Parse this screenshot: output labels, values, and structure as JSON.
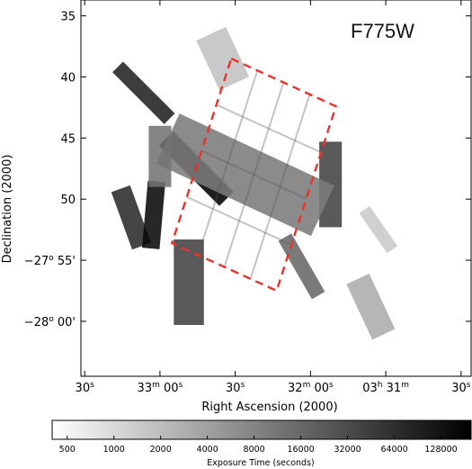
{
  "chart_data": {
    "type": "heatmap",
    "title": "F775W",
    "xlabel": "Right Ascension (2000)",
    "ylabel": "Declination (2000)",
    "x_ticks": [
      {
        "ra_sec": 30.0,
        "label": "30"
      },
      {
        "ra_sec": 60.0,
        "label": "33"
      },
      {
        "ra_sec": 90.0,
        "label": "30"
      },
      {
        "ra_sec": 120.0,
        "label": "32"
      },
      {
        "ra_sec": 150.0,
        "label": "03"
      },
      {
        "ra_sec": 180.0,
        "label": "30"
      }
    ],
    "x_tick_units": {
      "seconds": "s",
      "minutes": "m",
      "hours": "h"
    },
    "x_tick_extra": {
      "minute_second": "00"
    },
    "y_ticks": [
      {
        "dec_min": -35,
        "label": "35"
      },
      {
        "dec_min": -40,
        "label": "40"
      },
      {
        "dec_min": -45,
        "label": "45"
      },
      {
        "dec_min": -50,
        "label": "50"
      },
      {
        "dec_min": -55,
        "label": "−27° 55'"
      },
      {
        "dec_min": -60,
        "label": "−28° 00'"
      }
    ],
    "y_tick_parts": {
      "m55": {
        "deg": "−27",
        "sup": "o",
        "min": " 55'"
      },
      "m60": {
        "deg": "−28",
        "sup": "o",
        "min": " 00'"
      }
    },
    "xlim_ra_sec_offset": [
      28.5,
      184.0
    ],
    "ylim_dec_arcmin": [
      -33.7,
      -64.5
    ],
    "colorbar": {
      "title": "Exposure Time (seconds)",
      "scale": "log",
      "range": [
        400,
        200000
      ],
      "ticks": [
        500,
        1000,
        2000,
        4000,
        8000,
        16000,
        32000,
        64000,
        128000
      ],
      "tick_labels": [
        "500",
        "1000",
        "2000",
        "4000",
        "8000",
        "16000",
        "32000",
        "64000",
        "128000"
      ],
      "colormap": [
        "#ffffff",
        "#000000"
      ]
    },
    "footprints": [
      {
        "name": "top-gray-pair",
        "center": [
          85.0,
          -38.5
        ],
        "size": [
          13.0,
          4.5
        ],
        "angle": -25,
        "exposure": 1800
      },
      {
        "name": "dark-tile-top",
        "center": [
          53.5,
          -41.3
        ],
        "size": [
          6.0,
          6.0
        ],
        "angle": -45,
        "exposure": 90000
      },
      {
        "name": "black-diamond",
        "center": [
          74.5,
          -47.5
        ],
        "size": [
          8.0,
          7.0
        ],
        "angle": -45,
        "exposure": 200000
      },
      {
        "name": "dark-tile-left",
        "center": [
          48.5,
          -51.5
        ],
        "size": [
          8.0,
          5.0
        ],
        "angle": -20,
        "exposure": 70000
      },
      {
        "name": "black-tile-left",
        "center": [
          57.5,
          -51.3
        ],
        "size": [
          7.0,
          5.5
        ],
        "angle": 5,
        "exposure": 160000
      },
      {
        "name": "bottom-stack",
        "center": [
          71.5,
          -56.8
        ],
        "size": [
          12.0,
          7.0
        ],
        "angle": 0,
        "exposure": 40000
      },
      {
        "name": "right-stack",
        "center": [
          128.0,
          -48.8
        ],
        "size": [
          9.0,
          7.0
        ],
        "angle": 0,
        "exposure": 40000
      },
      {
        "name": "mid-right-tile",
        "center": [
          116.5,
          -55.5
        ],
        "size": [
          6.0,
          5.5
        ],
        "angle": -30,
        "exposure": 16000
      },
      {
        "name": "far-right-faint",
        "center": [
          147.0,
          -52.5
        ],
        "size": [
          5.0,
          4.0
        ],
        "angle": -35,
        "exposure": 1500
      },
      {
        "name": "bottom-right-pair",
        "center": [
          144.0,
          -58.8
        ],
        "size": [
          10.0,
          5.0
        ],
        "angle": -25,
        "exposure": 3000
      },
      {
        "name": "mosaic-main",
        "center": [
          94.0,
          -48.0
        ],
        "size": [
          22.0,
          14.0
        ],
        "angle": -65,
        "exposure": 10000
      },
      {
        "name": "left-gray-tile",
        "center": [
          60.0,
          -46.5
        ],
        "size": [
          9.0,
          5.0
        ],
        "angle": 0,
        "exposure": 12000
      }
    ],
    "highlight_region": {
      "style": "dashed red",
      "color": "#e8332a",
      "corners_ra_sec_dec_min": [
        [
          88.4,
          -38.5
        ],
        [
          130.1,
          -42.4
        ],
        [
          106.5,
          -57.5
        ],
        [
          64.8,
          -53.6
        ]
      ]
    }
  }
}
